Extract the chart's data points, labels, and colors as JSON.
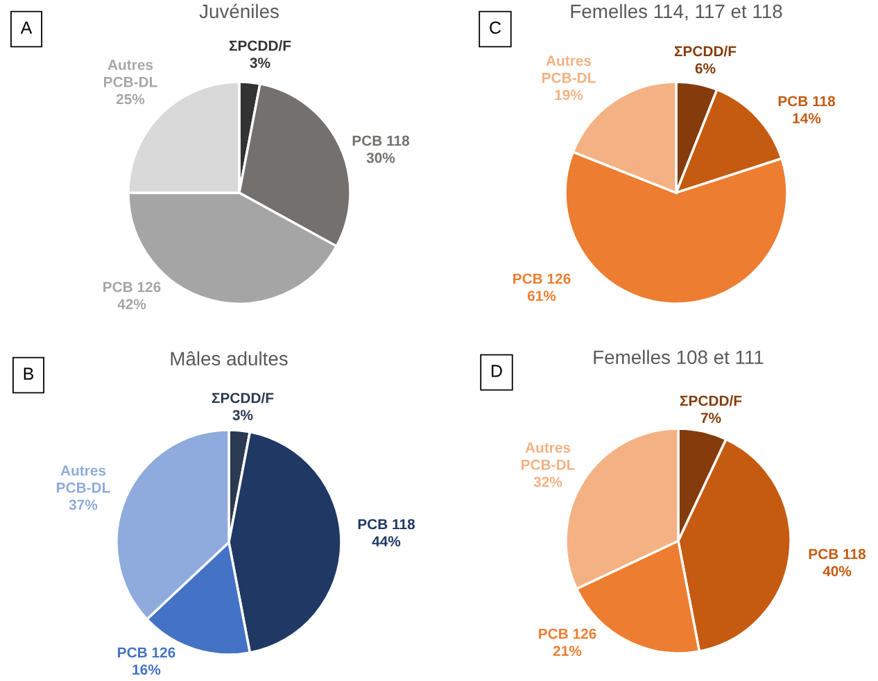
{
  "chart_data": [
    {
      "type": "pie",
      "title": "Juvéniles",
      "annotations": [
        "A"
      ],
      "categories": [
        "ΣPCDD/F",
        "PCB 118",
        "PCB 126",
        "Autres\nPCB-DL"
      ],
      "values": [
        3,
        30,
        42,
        25
      ],
      "value_labels": [
        "3%",
        "30%",
        "42%",
        "25%"
      ],
      "colors": [
        "#333333",
        "#73706e",
        "#a5a5a5",
        "#d9d9d9"
      ]
    },
    {
      "type": "pie",
      "title": "Mâles adultes",
      "annotations": [
        "B"
      ],
      "categories": [
        "ΣPCDD/F",
        "PCB 118",
        "PCB 126",
        "Autres\nPCB-DL"
      ],
      "values": [
        3,
        44,
        16,
        37
      ],
      "value_labels": [
        "3%",
        "44%",
        "16%",
        "37%"
      ],
      "colors": [
        "#2b3a52",
        "#203864",
        "#4472c4",
        "#8faadc"
      ]
    },
    {
      "type": "pie",
      "title": "Femelles 114, 117 et 118",
      "annotations": [
        "C"
      ],
      "categories": [
        "ΣPCDD/F",
        "PCB 118",
        "PCB 126",
        "Autres\nPCB-DL"
      ],
      "values": [
        6,
        14,
        61,
        19
      ],
      "value_labels": [
        "6%",
        "14%",
        "61%",
        "19%"
      ],
      "colors": [
        "#843c0c",
        "#c55a11",
        "#ed7d31",
        "#f4b183"
      ]
    },
    {
      "type": "pie",
      "title": "Femelles 108 et 111",
      "annotations": [
        "D"
      ],
      "categories": [
        "ΣPCDD/F",
        "PCB 118",
        "PCB 126",
        "Autres\nPCB-DL"
      ],
      "values": [
        7,
        40,
        21,
        32
      ],
      "value_labels": [
        "7%",
        "40%",
        "21%",
        "32%"
      ],
      "colors": [
        "#843c0c",
        "#c55a11",
        "#ed7d31",
        "#f4b183"
      ]
    }
  ]
}
